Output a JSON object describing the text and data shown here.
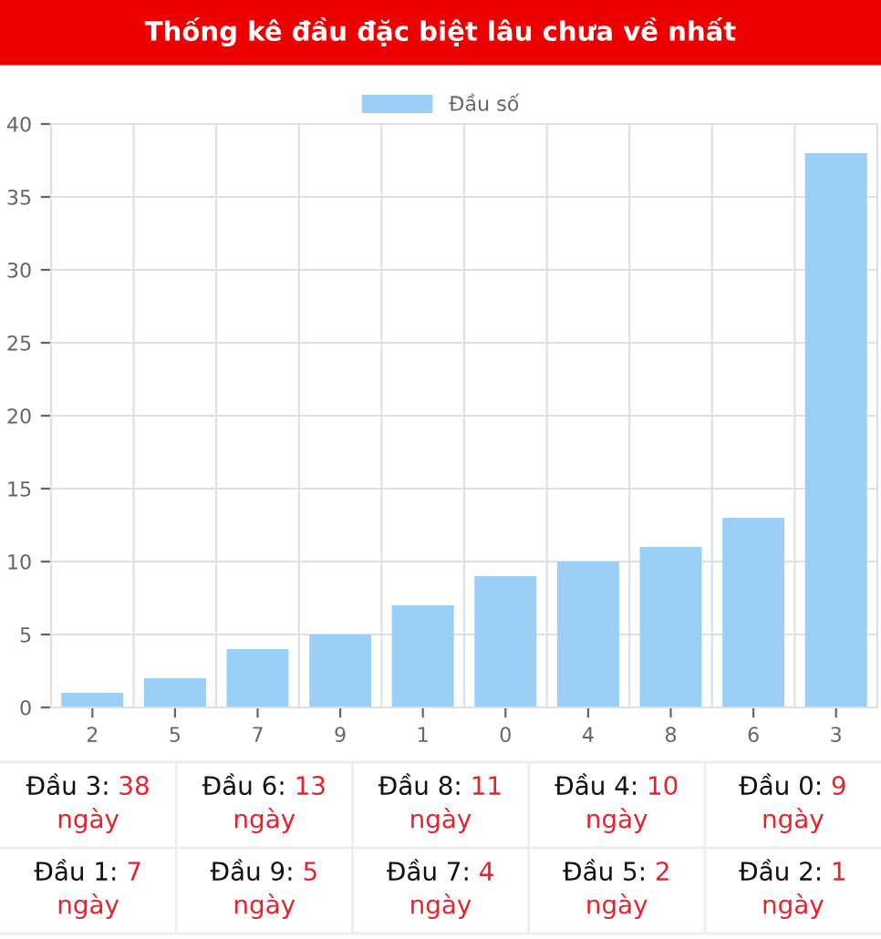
{
  "chart_data": {
    "type": "bar",
    "title": "Thống kê đầu đặc biệt lâu chưa về nhất",
    "categories": [
      "2",
      "5",
      "7",
      "9",
      "1",
      "0",
      "4",
      "8",
      "6",
      "3"
    ],
    "series": [
      {
        "name": "Đầu số",
        "color": "#9ccff5",
        "values": [
          1,
          2,
          4,
          5,
          7,
          9,
          10,
          11,
          13,
          38
        ]
      }
    ],
    "ylim": [
      0,
      40
    ],
    "yticks": [
      0,
      5,
      10,
      15,
      20,
      25,
      30,
      35,
      40
    ],
    "grid": true,
    "legend": "top",
    "annotations": [
      "Đầu 3: 38\nngày",
      "Đầu 6: 13\nngày",
      "Đầu 8: 11\nngày",
      "Đầu 4: 10\nngày",
      "Đầu 0: 9\nngày",
      "Đầu 1: 7\nngày",
      "Đầu 9: 5\nngày",
      "Đầu 7: 4\nngày",
      "Đầu 5: 2\nngày",
      "Đầu 2: 1\nngày"
    ]
  }
}
